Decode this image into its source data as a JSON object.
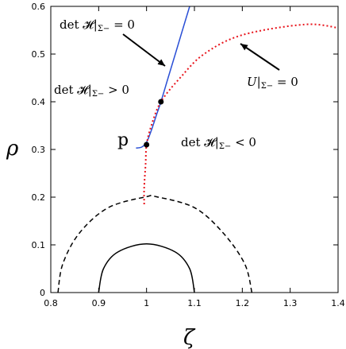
{
  "chart_data": {
    "type": "line",
    "xlabel": "ζ",
    "ylabel": "ρ",
    "xlim": [
      0.8,
      1.4
    ],
    "ylim": [
      0,
      0.6
    ],
    "x_ticks": [
      "0.8",
      "0.9",
      "1",
      "1.1",
      "1.2",
      "1.3",
      "1.4"
    ],
    "y_ticks": [
      "0",
      "0.1",
      "0.2",
      "0.3",
      "0.4",
      "0.5",
      "0.6"
    ],
    "grid": false,
    "legend": "none",
    "series": [
      {
        "style": "solid",
        "color": "#2a4fd6",
        "points": [
          [
            0.978,
            0.303
          ],
          [
            0.99,
            0.305
          ],
          [
            1.0,
            0.315
          ],
          [
            1.01,
            0.34
          ],
          [
            1.02,
            0.37
          ],
          [
            1.03,
            0.4
          ],
          [
            1.045,
            0.45
          ],
          [
            1.06,
            0.5
          ],
          [
            1.075,
            0.55
          ],
          [
            1.09,
            0.6
          ]
        ]
      },
      {
        "style": "dotted",
        "color": "#e8141c",
        "points": [
          [
            0.995,
            0.185
          ],
          [
            0.995,
            0.22
          ],
          [
            0.998,
            0.27
          ],
          [
            1.0,
            0.31
          ],
          [
            1.01,
            0.35
          ],
          [
            1.03,
            0.4
          ],
          [
            1.07,
            0.45
          ],
          [
            1.12,
            0.5
          ],
          [
            1.2,
            0.54
          ],
          [
            1.33,
            0.562
          ],
          [
            1.4,
            0.555
          ]
        ]
      },
      {
        "style": "dashed",
        "color": "#000000",
        "points": [
          [
            0.815,
            0
          ],
          [
            0.825,
            0.06
          ],
          [
            0.86,
            0.125
          ],
          [
            0.92,
            0.178
          ],
          [
            1.0,
            0.201
          ],
          [
            1.02,
            0.201
          ],
          [
            1.1,
            0.178
          ],
          [
            1.16,
            0.125
          ],
          [
            1.205,
            0.06
          ],
          [
            1.22,
            0
          ]
        ]
      },
      {
        "style": "solid",
        "color": "#000000",
        "points": [
          [
            0.9,
            0
          ],
          [
            0.91,
            0.05
          ],
          [
            0.94,
            0.085
          ],
          [
            1.0,
            0.102
          ],
          [
            1.06,
            0.085
          ],
          [
            1.09,
            0.05
          ],
          [
            1.1,
            0
          ]
        ]
      }
    ],
    "markers": [
      {
        "x": 1.0,
        "y": 0.31
      },
      {
        "x": 1.03,
        "y": 0.4
      }
    ],
    "labels": {
      "p": "p",
      "blue_curve": {
        "main": "det 𝓗|",
        "sub": "Σ−",
        "rel": " = 0"
      },
      "upper_region": {
        "main": "det 𝓗|",
        "sub": "Σ−",
        "rel": " > 0"
      },
      "lower_region": {
        "main": "det 𝓗|",
        "sub": "Σ−",
        "rel": " < 0"
      },
      "red_curve": {
        "main": "U|",
        "sub": "Σ−",
        "rel": " = 0"
      }
    },
    "annotations": [
      {
        "from": {
          "x": 1.02,
          "y": 0.56
        },
        "to": {
          "x": 1.065,
          "y": 0.485
        },
        "text": "det 𝓗|Σ− = 0"
      },
      {
        "from": {
          "x": 1.25,
          "y": 0.465
        },
        "to": {
          "x": 1.18,
          "y": 0.522
        },
        "text": "U|Σ− = 0"
      }
    ]
  }
}
